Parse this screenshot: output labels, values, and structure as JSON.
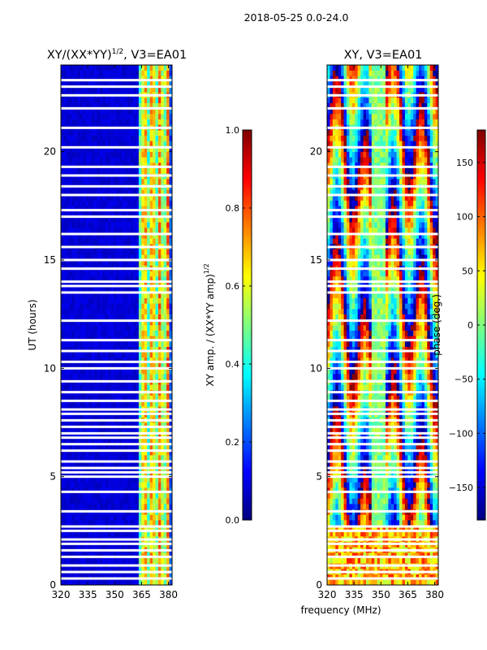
{
  "suptitle": "2018-05-25 0.0-24.0",
  "colors": {
    "jet": [
      "#00007f",
      "#0000ff",
      "#007fff",
      "#00ffff",
      "#7fff7f",
      "#ffff00",
      "#ff7f00",
      "#ff0000",
      "#7f0000"
    ]
  },
  "chart_data": [
    {
      "type": "heatmap",
      "title": "XY/(XX*YY)",
      "title_sup": "1/2",
      "title_suffix": ", V3=EA01",
      "xlabel": "",
      "ylabel": "UT (hours)",
      "xlim": [
        320,
        382
      ],
      "ylim": [
        0,
        24
      ],
      "xticks": [
        320,
        335,
        350,
        365,
        380
      ],
      "yticks": [
        0,
        5,
        10,
        15,
        20
      ],
      "colorbar": {
        "label": "XY amp. / (XX*YY amp)",
        "label_sup": "1/2",
        "range": [
          0.0,
          1.0
        ],
        "ticks": [
          "0.0",
          "0.2",
          "0.4",
          "0.6",
          "0.8",
          "1.0"
        ]
      },
      "value_description": "normalized cross-correlation amplitude; low (~0.05) below 364 MHz, 0.3-0.8 in 364-380 MHz channels",
      "blank_rows_hours": [
        0.3,
        0.6,
        0.9,
        1.3,
        1.6,
        1.9,
        2.1,
        2.5,
        2.7,
        3.4,
        4.3,
        5.0,
        5.2,
        5.4,
        5.7,
        6.2,
        6.5,
        6.8,
        7.0,
        7.3,
        7.6,
        7.9,
        8.1,
        8.5,
        8.9,
        9.4,
        10.0,
        10.3,
        10.8,
        11.3,
        12.2,
        13.5,
        13.8,
        14.0,
        14.6,
        15.0,
        15.6,
        16.2,
        17.0,
        17.3,
        18.0,
        18.4,
        18.9,
        19.3,
        20.2,
        21.1,
        22.0,
        22.6,
        23.0,
        23.3
      ]
    },
    {
      "type": "heatmap",
      "title": "XY, V3=EA01",
      "xlabel": "frequency (MHz)",
      "ylabel": "",
      "xlim": [
        320,
        382
      ],
      "ylim": [
        0,
        24
      ],
      "xticks": [
        320,
        335,
        350,
        365,
        380
      ],
      "yticks": [
        0,
        5,
        10,
        15,
        20
      ],
      "colorbar": {
        "label": "phase (deg.)",
        "range": [
          -180,
          180
        ],
        "ticks": [
          "−150",
          "−100",
          "−50",
          "0",
          "50",
          "100",
          "150"
        ]
      },
      "value_description": "cross-correlation phase in degrees; phase wraps across full -180..180 range with vertical banding",
      "blank_rows_hours": [
        0.3,
        0.6,
        0.9,
        1.3,
        1.6,
        1.9,
        2.1,
        2.5,
        2.7,
        3.4,
        4.3,
        5.0,
        5.2,
        5.4,
        5.7,
        6.2,
        6.5,
        6.8,
        7.0,
        7.3,
        7.6,
        7.9,
        8.1,
        8.5,
        8.9,
        9.4,
        10.0,
        10.3,
        10.8,
        11.3,
        12.2,
        13.5,
        13.8,
        14.0,
        14.6,
        15.0,
        15.6,
        16.2,
        17.0,
        17.3,
        18.0,
        18.4,
        18.9,
        19.3,
        20.2,
        21.1,
        22.0,
        22.6,
        23.0,
        23.3
      ]
    }
  ]
}
